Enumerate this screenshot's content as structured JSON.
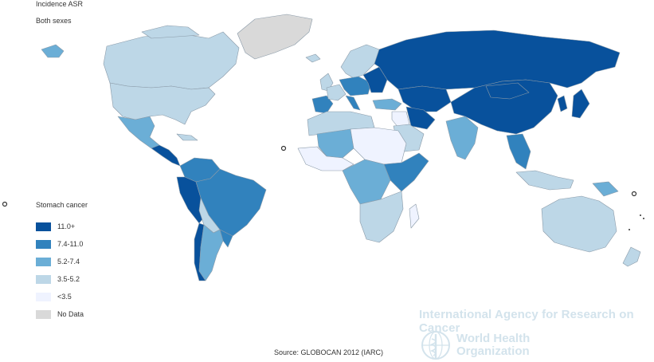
{
  "header": {
    "title": "Incidence ASR",
    "subtitle": "Both sexes"
  },
  "legend": {
    "title": "Stomach cancer",
    "items": [
      {
        "label": "11.0+",
        "color": "#08519c"
      },
      {
        "label": "7.4-11.0",
        "color": "#3182bd"
      },
      {
        "label": "5.2-7.4",
        "color": "#6baed6"
      },
      {
        "label": "3.5-5.2",
        "color": "#bdd7e7"
      },
      {
        "label": "<3.5",
        "color": "#eff3ff"
      },
      {
        "label": "No Data",
        "color": "#d9d9d9"
      }
    ]
  },
  "colors": {
    "border": "#8a9aa8"
  },
  "map": {
    "regions": [
      {
        "name": "greenland",
        "class": "No Data"
      },
      {
        "name": "canada",
        "class": "3.5-5.2"
      },
      {
        "name": "alaska",
        "class": "5.2-7.4"
      },
      {
        "name": "usa",
        "class": "3.5-5.2"
      },
      {
        "name": "mexico",
        "class": "5.2-7.4"
      },
      {
        "name": "central-america",
        "class": "11.0+"
      },
      {
        "name": "cuba",
        "class": "3.5-5.2"
      },
      {
        "name": "colombia-venezuela",
        "class": "7.4-11.0"
      },
      {
        "name": "ecuador-peru",
        "class": "11.0+"
      },
      {
        "name": "brazil",
        "class": "7.4-11.0"
      },
      {
        "name": "bolivia-paraguay",
        "class": "3.5-5.2"
      },
      {
        "name": "chile",
        "class": "11.0+"
      },
      {
        "name": "argentina",
        "class": "5.2-7.4"
      },
      {
        "name": "uruguay",
        "class": "7.4-11.0"
      },
      {
        "name": "iceland",
        "class": "3.5-5.2"
      },
      {
        "name": "scandinavia",
        "class": "3.5-5.2"
      },
      {
        "name": "uk",
        "class": "3.5-5.2"
      },
      {
        "name": "iberia",
        "class": "7.4-11.0"
      },
      {
        "name": "france",
        "class": "3.5-5.2"
      },
      {
        "name": "central-europe",
        "class": "7.4-11.0"
      },
      {
        "name": "italy",
        "class": "7.4-11.0"
      },
      {
        "name": "eastern-europe",
        "class": "11.0+"
      },
      {
        "name": "russia",
        "class": "11.0+"
      },
      {
        "name": "kazakhstan",
        "class": "11.0+"
      },
      {
        "name": "turkey",
        "class": "5.2-7.4"
      },
      {
        "name": "middle-east",
        "class": "<3.5"
      },
      {
        "name": "iran",
        "class": "11.0+"
      },
      {
        "name": "arabia",
        "class": "3.5-5.2"
      },
      {
        "name": "india",
        "class": "5.2-7.4"
      },
      {
        "name": "china",
        "class": "11.0+"
      },
      {
        "name": "mongolia",
        "class": "11.0+"
      },
      {
        "name": "korea",
        "class": "11.0+"
      },
      {
        "name": "japan",
        "class": "11.0+"
      },
      {
        "name": "southeast-asia",
        "class": "7.4-11.0"
      },
      {
        "name": "indonesia",
        "class": "3.5-5.2"
      },
      {
        "name": "png",
        "class": "5.2-7.4"
      },
      {
        "name": "australia",
        "class": "3.5-5.2"
      },
      {
        "name": "new-zealand",
        "class": "3.5-5.2"
      },
      {
        "name": "north-africa",
        "class": "3.5-5.2"
      },
      {
        "name": "mali-niger",
        "class": "5.2-7.4"
      },
      {
        "name": "sahara-east",
        "class": "<3.5"
      },
      {
        "name": "west-africa",
        "class": "<3.5"
      },
      {
        "name": "central-africa",
        "class": "5.2-7.4"
      },
      {
        "name": "east-africa",
        "class": "7.4-11.0"
      },
      {
        "name": "southern-africa",
        "class": "3.5-5.2"
      },
      {
        "name": "madagascar",
        "class": "<3.5"
      }
    ]
  },
  "footer": {
    "iarc": "International Agency for Research on Cancer",
    "who_line1": "World Health",
    "who_line2": "Organization",
    "source": "Source: GLOBOCAN 2012 (IARC)"
  }
}
